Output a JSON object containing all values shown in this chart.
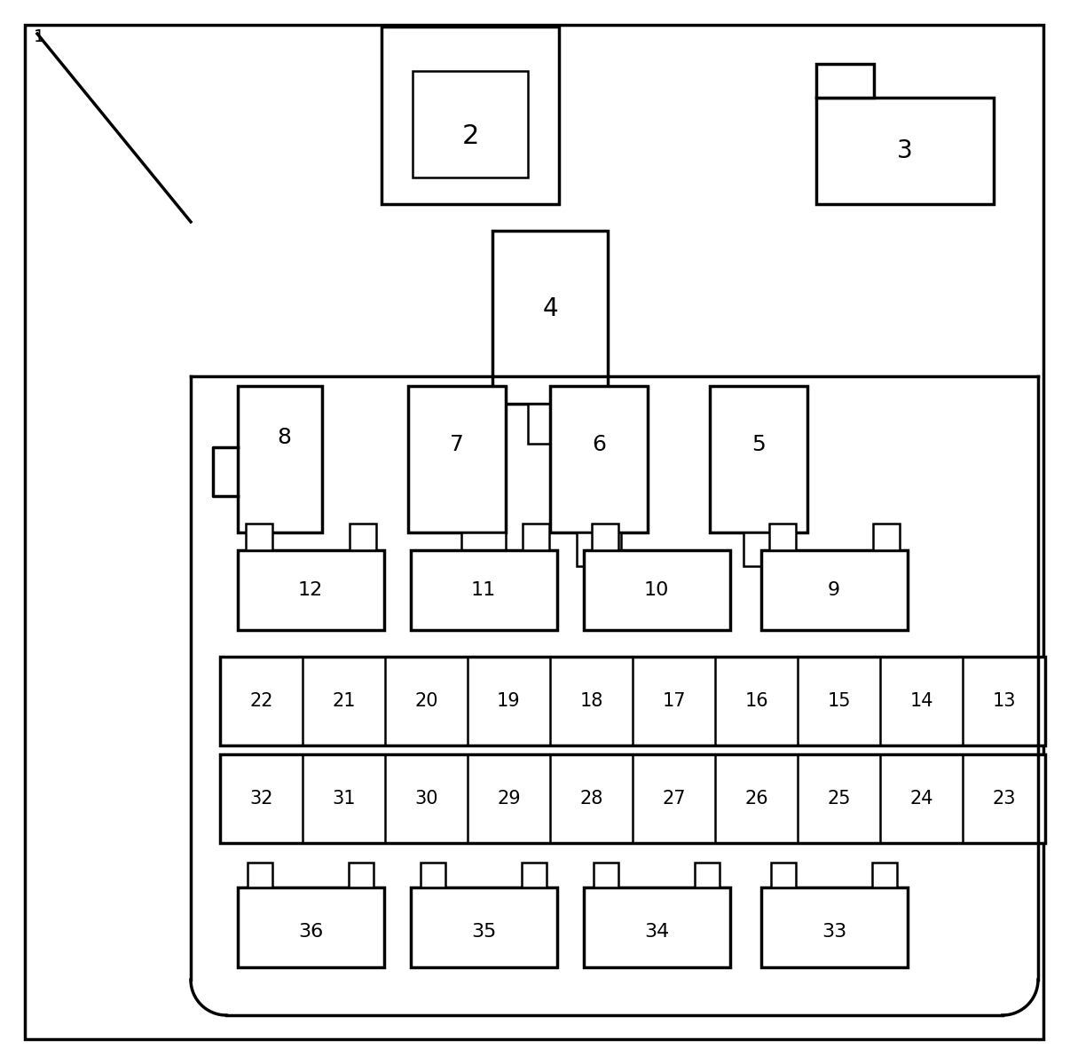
{
  "bg": "#ffffff",
  "lc": "#000000",
  "figsize": [
    12.06,
    11.99
  ],
  "dpi": 100,
  "row1_labels": [
    22,
    21,
    20,
    19,
    18,
    17,
    16,
    15,
    14,
    13
  ],
  "row2_labels": [
    32,
    31,
    30,
    29,
    28,
    27,
    26,
    25,
    24,
    23
  ],
  "lw": 2.5,
  "lw_inner": 1.8
}
